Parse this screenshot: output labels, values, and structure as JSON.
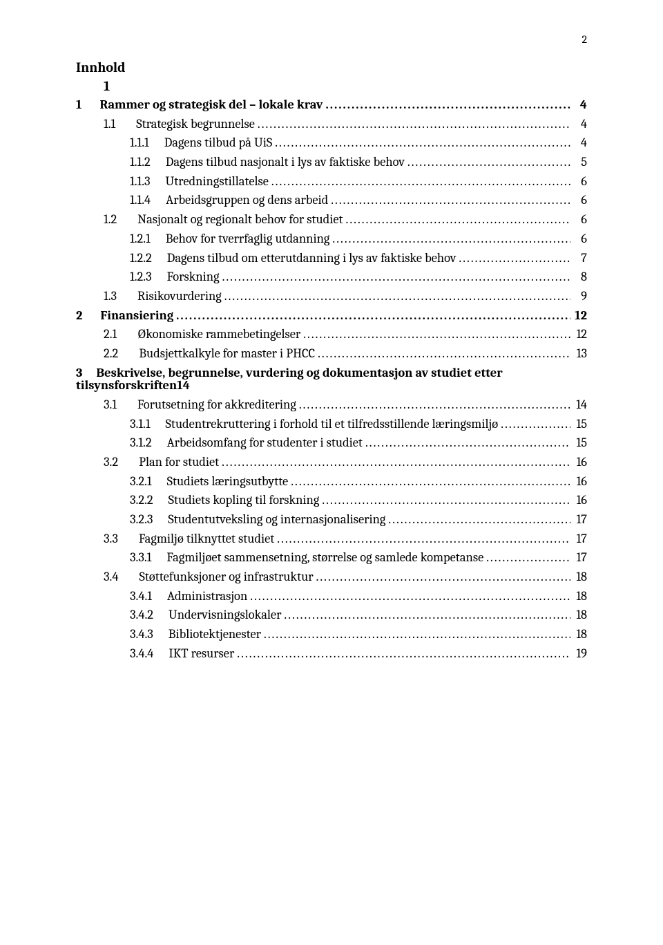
{
  "page_number": "2",
  "toc_heading": "Innhold",
  "toc_subheading": "1",
  "entries": [
    {
      "lvl": 1,
      "bold": true,
      "num": "1",
      "label": "Rammer og strategisk del – lokale krav",
      "pg": "4"
    },
    {
      "lvl": 2,
      "bold": false,
      "num": "1.1",
      "label": "Strategisk begrunnelse",
      "pg": "4"
    },
    {
      "lvl": 3,
      "bold": false,
      "num": "1.1.1",
      "label": "Dagens tilbud på UiS",
      "pg": "4"
    },
    {
      "lvl": 3,
      "bold": false,
      "num": "1.1.2",
      "label": "Dagens tilbud nasjonalt i lys av faktiske behov",
      "pg": "5"
    },
    {
      "lvl": 3,
      "bold": false,
      "num": "1.1.3",
      "label": "Utredningstillatelse",
      "pg": "6"
    },
    {
      "lvl": 3,
      "bold": false,
      "num": "1.1.4",
      "label": "Arbeidsgruppen og dens arbeid",
      "pg": "6"
    },
    {
      "lvl": 2,
      "bold": false,
      "num": "1.2",
      "label": "Nasjonalt og regionalt behov for studiet",
      "pg": "6"
    },
    {
      "lvl": 3,
      "bold": false,
      "num": "1.2.1",
      "label": "Behov for tverrfaglig utdanning",
      "pg": "6"
    },
    {
      "lvl": 3,
      "bold": false,
      "num": "1.2.2",
      "label": "Dagens tilbud om etterutdanning i lys av faktiske behov",
      "pg": "7"
    },
    {
      "lvl": 3,
      "bold": false,
      "num": "1.2.3",
      "label": "Forskning",
      "pg": "8"
    },
    {
      "lvl": 2,
      "bold": false,
      "num": "1.3",
      "label": "Risikovurdering",
      "pg": "9"
    },
    {
      "lvl": 1,
      "bold": true,
      "num": "2",
      "label": "Finansiering",
      "pg": "12"
    },
    {
      "lvl": 2,
      "bold": false,
      "num": "2.1",
      "label": "Økonomiske rammebetingelser",
      "pg": "12"
    },
    {
      "lvl": 2,
      "bold": false,
      "num": "2.2",
      "label": "Budsjettkalkyle for master i PHCC",
      "pg": "13"
    },
    {
      "lvl": 1,
      "bold": true,
      "num": "3",
      "label_line1": "Beskrivelse, begrunnelse, vurdering og dokumentasjon av studiet etter",
      "label_line2": "tilsynsforskriften",
      "pg": "14",
      "wrap": true
    },
    {
      "lvl": 2,
      "bold": false,
      "num": "3.1",
      "label": "Forutsetning for akkreditering",
      "pg": "14"
    },
    {
      "lvl": 3,
      "bold": false,
      "num": "3.1.1",
      "label": "Studentrekruttering i forhold til et tilfredsstillende læringsmiljø",
      "pg": "15"
    },
    {
      "lvl": 3,
      "bold": false,
      "num": "3.1.2",
      "label": "Arbeidsomfang for studenter i studiet",
      "pg": "15"
    },
    {
      "lvl": 2,
      "bold": false,
      "num": "3.2",
      "label": "Plan for studiet",
      "pg": "16"
    },
    {
      "lvl": 3,
      "bold": false,
      "num": "3.2.1",
      "label": "Studiets læringsutbytte",
      "pg": "16"
    },
    {
      "lvl": 3,
      "bold": false,
      "num": "3.2.2",
      "label": "Studiets kopling til forskning",
      "pg": "16"
    },
    {
      "lvl": 3,
      "bold": false,
      "num": "3.2.3",
      "label": "Studentutveksling og internasjonalisering",
      "pg": "17"
    },
    {
      "lvl": 2,
      "bold": false,
      "num": "3.3",
      "label": "Fagmiljø tilknyttet studiet",
      "pg": "17"
    },
    {
      "lvl": 3,
      "bold": false,
      "num": "3.3.1",
      "label": "Fagmiljøet sammensetning, størrelse og samlede kompetanse",
      "pg": "17"
    },
    {
      "lvl": 2,
      "bold": false,
      "num": "3.4",
      "label": "Støttefunksjoner og infrastruktur",
      "pg": "18"
    },
    {
      "lvl": 3,
      "bold": false,
      "num": "3.4.1",
      "label": "Administrasjon",
      "pg": "18"
    },
    {
      "lvl": 3,
      "bold": false,
      "num": "3.4.2",
      "label": "Undervisningslokaler",
      "pg": "18"
    },
    {
      "lvl": 3,
      "bold": false,
      "num": "3.4.3",
      "label": "Bibliotektjenester",
      "pg": "18"
    },
    {
      "lvl": 3,
      "bold": false,
      "num": "3.4.4",
      "label": "IKT resurser",
      "pg": "19"
    }
  ]
}
